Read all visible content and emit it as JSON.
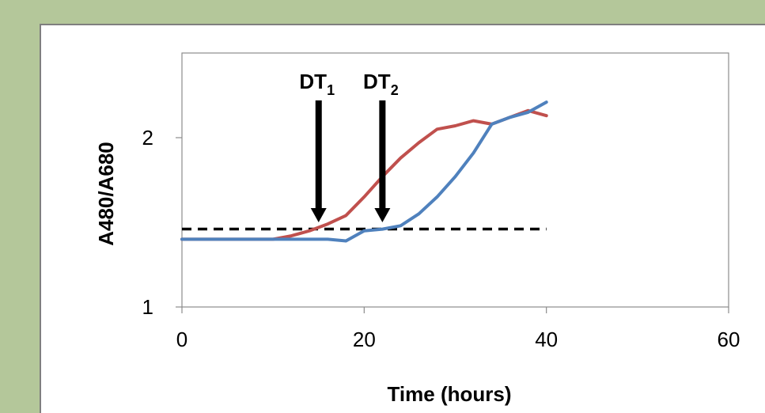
{
  "chart_data": {
    "type": "line",
    "xlabel": "Time (hours)",
    "ylabel": "A480/A680",
    "xlim": [
      0,
      60
    ],
    "ylim": [
      1,
      2.5
    ],
    "x_ticks": [
      "0",
      "20",
      "40",
      "60"
    ],
    "y_ticks": [
      "1",
      "2"
    ],
    "series": [
      {
        "color": "#c0504d",
        "points": [
          [
            0,
            1.4
          ],
          [
            10,
            1.4
          ],
          [
            12,
            1.42
          ],
          [
            14,
            1.45
          ],
          [
            16,
            1.49
          ],
          [
            18,
            1.54
          ],
          [
            20,
            1.65
          ],
          [
            22,
            1.77
          ],
          [
            24,
            1.88
          ],
          [
            26,
            1.97
          ],
          [
            28,
            2.05
          ],
          [
            30,
            2.07
          ],
          [
            32,
            2.1
          ],
          [
            34,
            2.08
          ],
          [
            36,
            2.12
          ],
          [
            38,
            2.16
          ],
          [
            40,
            2.13
          ]
        ]
      },
      {
        "color": "#4f81bd",
        "points": [
          [
            0,
            1.4
          ],
          [
            12,
            1.4
          ],
          [
            16,
            1.4
          ],
          [
            18,
            1.39
          ],
          [
            20,
            1.45
          ],
          [
            22,
            1.46
          ],
          [
            24,
            1.48
          ],
          [
            26,
            1.55
          ],
          [
            28,
            1.65
          ],
          [
            30,
            1.77
          ],
          [
            32,
            1.91
          ],
          [
            34,
            2.08
          ],
          [
            36,
            2.12
          ],
          [
            38,
            2.15
          ],
          [
            40,
            2.21
          ]
        ]
      }
    ],
    "threshold": {
      "y": 1.46,
      "x_start": 0,
      "x_end": 40,
      "style": "dashed",
      "color": "#000000"
    },
    "annotations": [
      {
        "label": "DT",
        "sub": "1",
        "x": 15,
        "y_top": 2.22,
        "y_tip": 1.5
      },
      {
        "label": "DT",
        "sub": "2",
        "x": 22,
        "y_top": 2.22,
        "y_tip": 1.5
      }
    ]
  }
}
